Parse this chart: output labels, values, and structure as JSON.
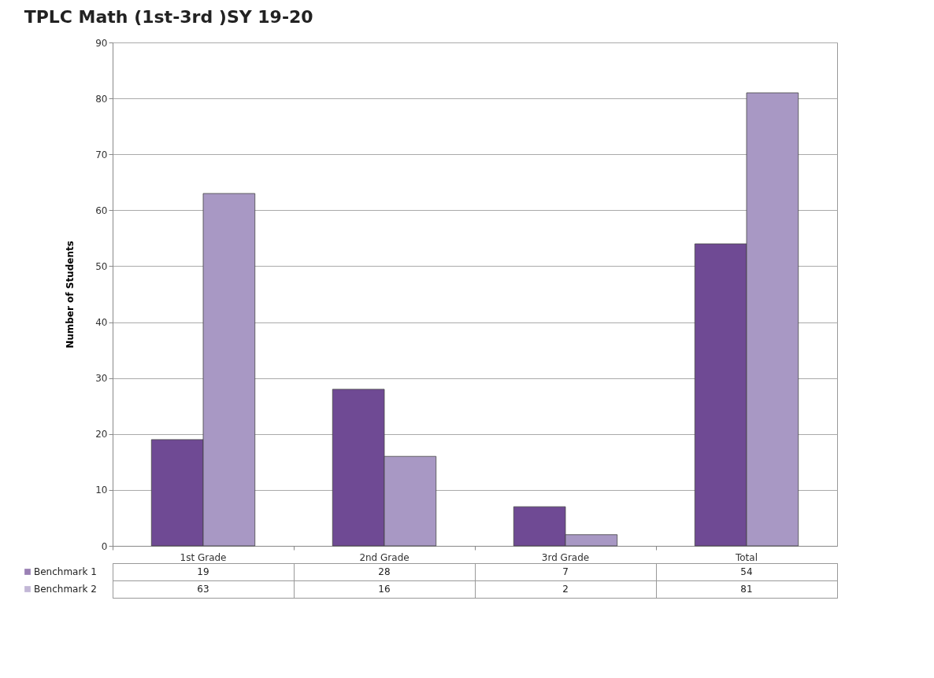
{
  "chart_data": {
    "type": "bar",
    "title": "TPLC Math (1st-3rd )SY 19-20",
    "ylabel": "Number of Students",
    "categories": [
      "1st Grade",
      "2nd Grade",
      "3rd Grade",
      "Total"
    ],
    "series": [
      {
        "name": "Benchmark 1",
        "color": "#6f4a94",
        "values": [
          19,
          28,
          7,
          54
        ]
      },
      {
        "name": "Benchmark 2",
        "color": "#a898c4",
        "values": [
          63,
          16,
          2,
          81
        ]
      }
    ],
    "ylim": [
      0,
      90
    ],
    "yticks": [
      0,
      10,
      20,
      30,
      40,
      50,
      60,
      70,
      80,
      90
    ],
    "grid": "y",
    "legend": "bottom",
    "data_labels": true
  }
}
